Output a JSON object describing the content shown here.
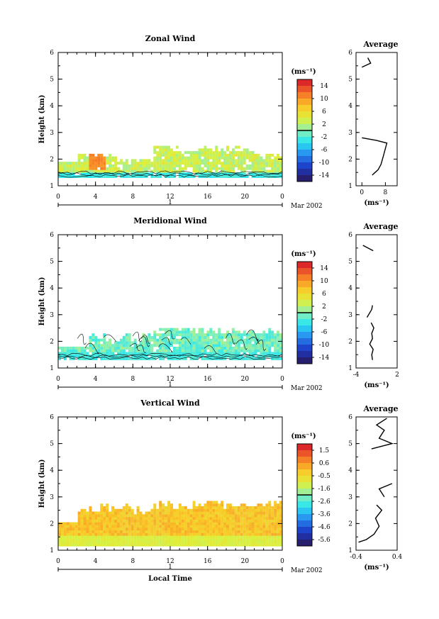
{
  "panels": [
    {
      "id": "zonal",
      "title": "Zonal Wind",
      "ylabel": "Height (km)",
      "ylim": [
        1,
        6
      ],
      "yticks": [
        "1",
        "2",
        "3",
        "4",
        "5",
        "6"
      ],
      "xticks": [
        "0",
        "4",
        "8",
        "12",
        "16",
        "20",
        "0"
      ],
      "xlim": [
        0,
        24
      ],
      "day_label": "1",
      "date_label": "Mar 2002",
      "unit_label": "(ms⁻¹)",
      "colorbar_ticks": [
        "14",
        "10",
        "6",
        "2",
        "-2",
        "-6",
        "-10",
        "-14"
      ],
      "colorbar_range": [
        -16,
        16
      ],
      "avg_title": "Average",
      "avg_xticks": [
        "0",
        "8"
      ],
      "avg_xlim": [
        -2,
        12
      ],
      "avg_xlabel": "(ms⁻¹)",
      "avg_profile": [
        {
          "x": 3.5,
          "y": 1.4
        },
        {
          "x": 4.5,
          "y": 1.5
        },
        {
          "x": 5.5,
          "y": 1.6
        },
        {
          "x": 6.5,
          "y": 1.8
        },
        {
          "x": 7,
          "y": 2.0
        },
        {
          "x": 7.5,
          "y": 2.2
        },
        {
          "x": 8.0,
          "y": 2.4
        },
        {
          "x": 8.5,
          "y": 2.6
        },
        {
          "x": 5,
          "y": 2.7
        },
        {
          "x": 0,
          "y": 2.8
        }
      ],
      "avg_profile2": [
        {
          "x": 0,
          "y": 5.45
        },
        {
          "x": 3,
          "y": 5.6
        },
        {
          "x": 2,
          "y": 5.8
        }
      ]
    },
    {
      "id": "meridional",
      "title": "Meridional Wind",
      "ylabel": "Height (km)",
      "ylim": [
        1,
        6
      ],
      "yticks": [
        "1",
        "2",
        "3",
        "4",
        "5",
        "6"
      ],
      "xticks": [
        "0",
        "4",
        "8",
        "12",
        "16",
        "20",
        "0"
      ],
      "xlim": [
        0,
        24
      ],
      "day_label": "1",
      "date_label": "Mar 2002",
      "unit_label": "(ms⁻¹)",
      "colorbar_ticks": [
        "14",
        "10",
        "6",
        "2",
        "-2",
        "-6",
        "-10",
        "-14"
      ],
      "colorbar_range": [
        -16,
        16
      ],
      "avg_title": "Average",
      "avg_xticks": [
        "-4",
        "2"
      ],
      "avg_xlim": [
        -4,
        2
      ],
      "avg_xlabel": "(ms⁻¹)",
      "avg_profile": [
        {
          "x": -1.6,
          "y": 1.3
        },
        {
          "x": -1.7,
          "y": 1.5
        },
        {
          "x": -1.5,
          "y": 1.7
        },
        {
          "x": -2.0,
          "y": 1.9
        },
        {
          "x": -1.6,
          "y": 2.1
        },
        {
          "x": -1.7,
          "y": 2.3
        },
        {
          "x": -1.4,
          "y": 2.5
        },
        {
          "x": -1.8,
          "y": 2.7
        }
      ],
      "avg_profile2": [
        {
          "x": -2.4,
          "y": 2.9
        },
        {
          "x": -1.7,
          "y": 3.2
        },
        {
          "x": -1.6,
          "y": 3.35
        }
      ],
      "avg_profile3": [
        {
          "x": -3.0,
          "y": 5.6
        },
        {
          "x": -1.5,
          "y": 5.4
        }
      ]
    },
    {
      "id": "vertical",
      "title": "Vertical Wind",
      "ylabel": "Height (km)",
      "ylim": [
        1,
        6
      ],
      "yticks": [
        "1",
        "2",
        "3",
        "4",
        "5",
        "6"
      ],
      "xticks": [
        "0",
        "4",
        "8",
        "12",
        "16",
        "20",
        "0"
      ],
      "xlim": [
        0,
        24
      ],
      "day_label": "1",
      "date_label": "Mar 2002",
      "xlabel": "Local Time",
      "unit_label": "(ms⁻¹)",
      "colorbar_ticks": [
        "1.5",
        "0.6",
        "-0.5",
        "-1.6",
        "-2.6",
        "-3.6",
        "-4.6",
        "-5.6"
      ],
      "colorbar_range": [
        -6.0,
        2.0
      ],
      "avg_title": "Average",
      "avg_xticks": [
        "-0.4",
        "0.4"
      ],
      "avg_xlim": [
        -0.4,
        0.4
      ],
      "avg_xlabel": "(ms⁻¹)",
      "avg_profile": [
        {
          "x": -0.35,
          "y": 1.3
        },
        {
          "x": -0.2,
          "y": 1.4
        },
        {
          "x": -0.05,
          "y": 1.6
        },
        {
          "x": 0.05,
          "y": 1.9
        },
        {
          "x": -0.02,
          "y": 2.2
        },
        {
          "x": 0.1,
          "y": 2.5
        },
        {
          "x": 0.0,
          "y": 2.7
        }
      ],
      "avg_profile2": [
        {
          "x": 0.15,
          "y": 3.0
        },
        {
          "x": 0.05,
          "y": 3.3
        },
        {
          "x": 0.3,
          "y": 3.5
        }
      ],
      "avg_profile3": [
        {
          "x": -0.1,
          "y": 4.8
        },
        {
          "x": 0.3,
          "y": 5.0
        },
        {
          "x": 0.05,
          "y": 5.2
        },
        {
          "x": 0.15,
          "y": 5.5
        },
        {
          "x": 0.0,
          "y": 5.7
        },
        {
          "x": 0.2,
          "y": 5.95
        }
      ]
    }
  ],
  "chart_data": [
    {
      "type": "heatmap",
      "title": "Zonal Wind",
      "ylabel": "Height (km)",
      "ylim": [
        1,
        6
      ],
      "xlim": [
        0,
        24
      ],
      "colorbar_range": [
        -16,
        16
      ]
    },
    {
      "type": "heatmap",
      "title": "Meridional Wind",
      "ylabel": "Height (km)",
      "ylim": [
        1,
        6
      ],
      "xlim": [
        0,
        24
      ],
      "colorbar_range": [
        -16,
        16
      ]
    },
    {
      "type": "heatmap",
      "title": "Vertical Wind",
      "ylabel": "Height (km)",
      "xlabel": "Local Time",
      "ylim": [
        1,
        6
      ],
      "xlim": [
        0,
        24
      ],
      "colorbar_range": [
        -6.0,
        2.0
      ]
    }
  ]
}
